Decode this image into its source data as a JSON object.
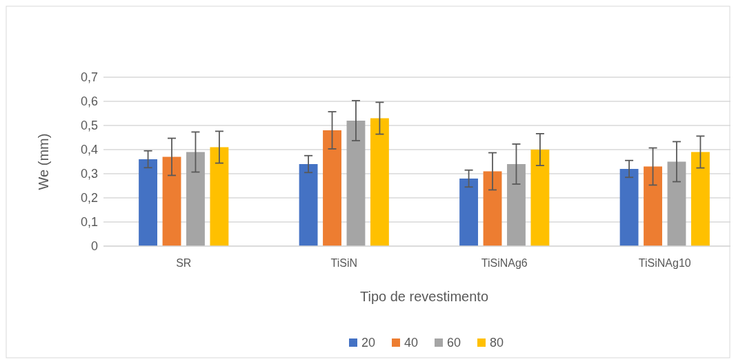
{
  "chart_data": {
    "type": "bar",
    "xlabel": "Tipo de revestimento",
    "ylabel": "We (mm)",
    "categories": [
      "SR",
      "TiSiN",
      "TiSiNAg6",
      "TiSiNAg10"
    ],
    "series": [
      {
        "name": "20",
        "color": "#4472c4",
        "values": [
          0.36,
          0.34,
          0.28,
          0.32
        ],
        "errors": [
          0.035,
          0.035,
          0.035,
          0.035
        ]
      },
      {
        "name": "40",
        "color": "#ed7d31",
        "values": [
          0.37,
          0.48,
          0.31,
          0.33
        ],
        "errors": [
          0.077,
          0.077,
          0.077,
          0.077
        ]
      },
      {
        "name": "60",
        "color": "#a5a5a5",
        "values": [
          0.39,
          0.52,
          0.34,
          0.35
        ],
        "errors": [
          0.083,
          0.083,
          0.083,
          0.083
        ]
      },
      {
        "name": "80",
        "color": "#ffc000",
        "values": [
          0.41,
          0.53,
          0.4,
          0.39
        ],
        "errors": [
          0.066,
          0.066,
          0.066,
          0.066
        ]
      }
    ],
    "ylim": [
      0,
      0.7
    ],
    "yticks": [
      {
        "value": 0,
        "label": "0"
      },
      {
        "value": 0.1,
        "label": "0,1"
      },
      {
        "value": 0.2,
        "label": "0,2"
      },
      {
        "value": 0.3,
        "label": "0,3"
      },
      {
        "value": 0.4,
        "label": "0,4"
      },
      {
        "value": 0.5,
        "label": "0,5"
      },
      {
        "value": 0.6,
        "label": "0,6"
      },
      {
        "value": 0.7,
        "label": "0,7"
      }
    ],
    "grid": "y",
    "legend": "bottom"
  }
}
